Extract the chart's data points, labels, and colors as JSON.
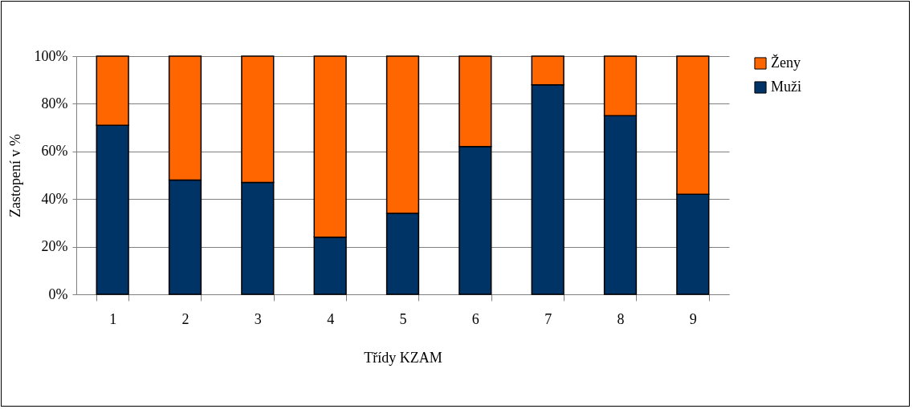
{
  "chart_data": {
    "type": "bar",
    "stacked": true,
    "xlabel": "Třídy KZAM",
    "ylabel": "Zastopení v %",
    "categories": [
      "1",
      "2",
      "3",
      "4",
      "5",
      "6",
      "7",
      "8",
      "9"
    ],
    "series": [
      {
        "name": "Muži",
        "color": "#003366",
        "values": [
          71,
          48,
          47,
          24,
          34,
          62,
          88,
          75,
          42
        ]
      },
      {
        "name": "Ženy",
        "color": "#ff6600",
        "values": [
          29,
          52,
          53,
          76,
          66,
          38,
          12,
          25,
          58
        ]
      }
    ],
    "ylim": [
      0,
      100
    ],
    "yticks": [
      {
        "value": 0,
        "label": "0%"
      },
      {
        "value": 20,
        "label": "20%"
      },
      {
        "value": 40,
        "label": "40%"
      },
      {
        "value": 60,
        "label": "60%"
      },
      {
        "value": 80,
        "label": "80%"
      },
      {
        "value": 100,
        "label": "100%"
      }
    ],
    "grid": "y",
    "legend": "right"
  }
}
